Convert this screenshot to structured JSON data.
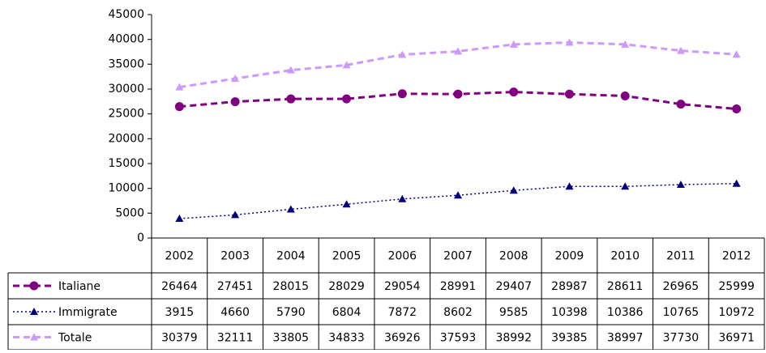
{
  "chart_data": {
    "type": "line",
    "categories": [
      "2002",
      "2003",
      "2004",
      "2005",
      "2006",
      "2007",
      "2008",
      "2009",
      "2010",
      "2011",
      "2012"
    ],
    "series": [
      {
        "name": "Italiane",
        "color": "#800080",
        "marker": "circle",
        "dash": "dashed",
        "values": [
          26464,
          27451,
          28015,
          28029,
          29054,
          28991,
          29407,
          28987,
          28611,
          26965,
          25999
        ]
      },
      {
        "name": "Immigrate",
        "color": "#000080",
        "marker": "triangle",
        "dash": "dotted",
        "values": [
          3915,
          4660,
          5790,
          6804,
          7872,
          8602,
          9585,
          10398,
          10386,
          10765,
          10972
        ]
      },
      {
        "name": "Totale",
        "color": "#CC99FF",
        "marker": "triangle",
        "dash": "dashed",
        "values": [
          30379,
          32111,
          33805,
          34833,
          36926,
          37593,
          38992,
          39385,
          38997,
          37730,
          36971
        ]
      }
    ],
    "ylim": [
      0,
      45000
    ],
    "yticks": [
      0,
      5000,
      10000,
      15000,
      20000,
      25000,
      30000,
      35000,
      40000,
      45000
    ],
    "data_table": true
  }
}
